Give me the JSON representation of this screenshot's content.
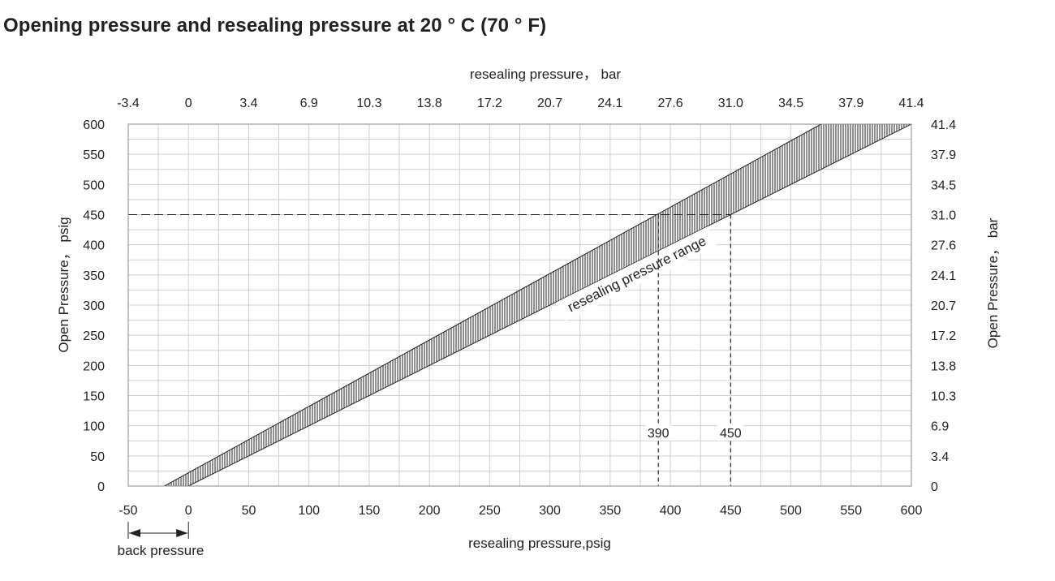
{
  "title": "Opening pressure and resealing pressure at 20 ° C (70 ° F)",
  "chart_data": {
    "type": "area",
    "xlabel": "resealing pressure,psig",
    "xlabel_top": "resealing pressure， bar",
    "ylabel": "Open Pressure， psig",
    "ylabel_right": "Open Pressure， bar",
    "xlim": [
      -50,
      600
    ],
    "ylim": [
      0,
      600
    ],
    "x_ticks": [
      "-50",
      "0",
      "50",
      "100",
      "150",
      "200",
      "250",
      "300",
      "350",
      "400",
      "450",
      "500",
      "550",
      "600"
    ],
    "x_ticks_top": [
      "-3.4",
      "0",
      "3.4",
      "6.9",
      "10.3",
      "13.8",
      "17.2",
      "20.7",
      "24.1",
      "27.6",
      "31.0",
      "34.5",
      "37.9",
      "41.4"
    ],
    "y_ticks": [
      "0",
      "50",
      "100",
      "150",
      "200",
      "250",
      "300",
      "350",
      "400",
      "450",
      "500",
      "550",
      "600"
    ],
    "y_ticks_right": [
      "0",
      "3.4",
      "6.9",
      "10.3",
      "13.8",
      "17.2",
      "20.7",
      "24.1",
      "27.6",
      "31.0",
      "34.5",
      "37.9",
      "41.4"
    ],
    "grid": true,
    "band": {
      "name": "resealing pressure range",
      "lower_edge": [
        [
          -20,
          0
        ],
        [
          525,
          600
        ]
      ],
      "upper_edge": [
        [
          0,
          0
        ],
        [
          600,
          600
        ]
      ]
    },
    "example": {
      "open_pressure": 450,
      "reseal_low": 390,
      "reseal_high": 450,
      "labels": [
        "390",
        "450"
      ]
    },
    "annotation": "back pressure"
  }
}
